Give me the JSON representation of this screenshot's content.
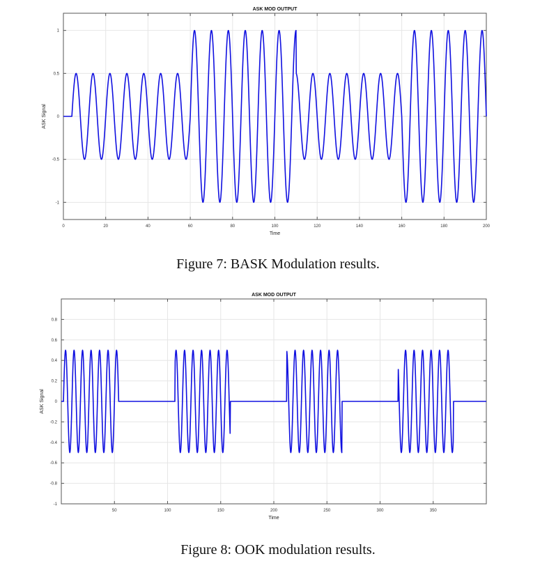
{
  "captions": {
    "figure7": "Figure 7: BASK Modulation results.",
    "figure8": "Figure 8: OOK modulation results."
  },
  "colors": {
    "line": "#1010e0",
    "grid": "#e6e6e6",
    "axis": "#555555"
  },
  "chart_data": [
    {
      "type": "line",
      "title": "ASK MOD OUTPUT",
      "xlabel": "Time",
      "ylabel": "ASK Signal",
      "xlim": [
        0,
        200
      ],
      "ylim": [
        -1.2,
        1.2
      ],
      "xticks": [
        0,
        20,
        40,
        60,
        80,
        100,
        120,
        140,
        160,
        180,
        200
      ],
      "yticks": [
        -1,
        -0.5,
        0,
        0.5,
        1
      ],
      "grid": true,
      "signal": {
        "zero_until": 4,
        "period": 8,
        "segments": [
          {
            "x_start": 0,
            "x_end": 60,
            "amplitude": 0.5
          },
          {
            "x_start": 60,
            "x_end": 110,
            "amplitude": 1
          },
          {
            "x_start": 110,
            "x_end": 160,
            "amplitude": 0.5
          },
          {
            "x_start": 160,
            "x_end": 200,
            "amplitude": 1
          }
        ]
      },
      "series": [
        {
          "name": "ASK Signal"
        }
      ]
    },
    {
      "type": "line",
      "title": "ASK MOD OUTPUT",
      "xlabel": "Time",
      "ylabel": "ASK Signal",
      "xlim": [
        0,
        400
      ],
      "ylim": [
        -1,
        1
      ],
      "xticks": [
        50,
        100,
        150,
        200,
        250,
        300,
        350
      ],
      "yticks": [
        -1,
        -0.8,
        -0.6,
        -0.4,
        -0.2,
        0,
        0.2,
        0.4,
        0.6,
        0.8
      ],
      "grid": true,
      "signal": {
        "zero_until": 2,
        "period": 8,
        "segments": [
          {
            "x_start": 2,
            "x_end": 54,
            "amplitude": 0.5
          },
          {
            "x_start": 54,
            "x_end": 107,
            "amplitude": 0
          },
          {
            "x_start": 107,
            "x_end": 159,
            "amplitude": 0.5
          },
          {
            "x_start": 159,
            "x_end": 212,
            "amplitude": 0
          },
          {
            "x_start": 212,
            "x_end": 264,
            "amplitude": 0.5
          },
          {
            "x_start": 264,
            "x_end": 317,
            "amplitude": 0
          },
          {
            "x_start": 317,
            "x_end": 369,
            "amplitude": 0.5
          },
          {
            "x_start": 369,
            "x_end": 400,
            "amplitude": 0
          }
        ]
      },
      "series": [
        {
          "name": "ASK Signal"
        }
      ]
    }
  ]
}
